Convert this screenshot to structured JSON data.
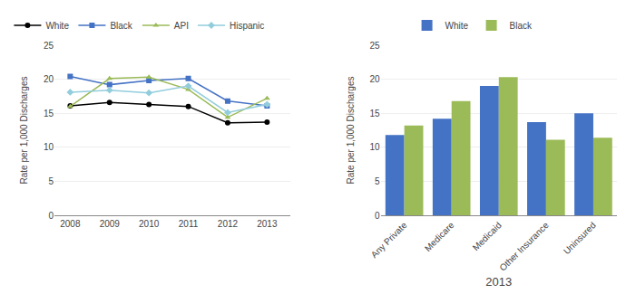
{
  "chart_data": [
    {
      "type": "line",
      "x": [
        2008,
        2009,
        2010,
        2011,
        2012,
        2013
      ],
      "series": [
        {
          "name": "White",
          "color": "#000000",
          "marker": "circle",
          "values": [
            16.1,
            16.6,
            16.3,
            16.0,
            13.6,
            13.7
          ]
        },
        {
          "name": "Black",
          "color": "#4472C4",
          "marker": "square",
          "values": [
            20.4,
            19.2,
            19.8,
            20.1,
            16.8,
            16.1
          ]
        },
        {
          "name": "API",
          "color": "#9BBB59",
          "marker": "triangle-up",
          "values": [
            16.0,
            20.1,
            20.3,
            18.5,
            14.4,
            17.2
          ]
        },
        {
          "name": "Hispanic",
          "color": "#92CDDC",
          "marker": "diamond",
          "values": [
            18.1,
            18.4,
            18.0,
            19.0,
            15.1,
            16.3
          ]
        }
      ],
      "ylabel": "Rate per 1,000 Discharges",
      "xlim": [
        2007.6,
        2013.6
      ],
      "xticks": [
        2008,
        2009,
        2010,
        2011,
        2012,
        2013
      ],
      "ylim": [
        0,
        25
      ],
      "yticks": [
        0,
        5,
        10,
        15,
        20,
        25
      ],
      "grid": true,
      "legend": "top"
    },
    {
      "type": "bar",
      "categories": [
        "Any Private",
        "Medicare",
        "Medicaid",
        "Other Insurance",
        "Uninsured"
      ],
      "series": [
        {
          "name": "White",
          "color": "#4472C4",
          "values": [
            11.8,
            14.2,
            19.0,
            13.7,
            15.0
          ]
        },
        {
          "name": "Black",
          "color": "#9BBB59",
          "values": [
            13.2,
            16.8,
            20.3,
            11.1,
            11.4
          ]
        }
      ],
      "xlabel": "2013",
      "ylabel": "Rate per 1,000 Discharges",
      "ylim": [
        0,
        25
      ],
      "yticks": [
        0,
        5,
        10,
        15,
        20,
        25
      ],
      "grid": true,
      "legend": "top"
    }
  ]
}
